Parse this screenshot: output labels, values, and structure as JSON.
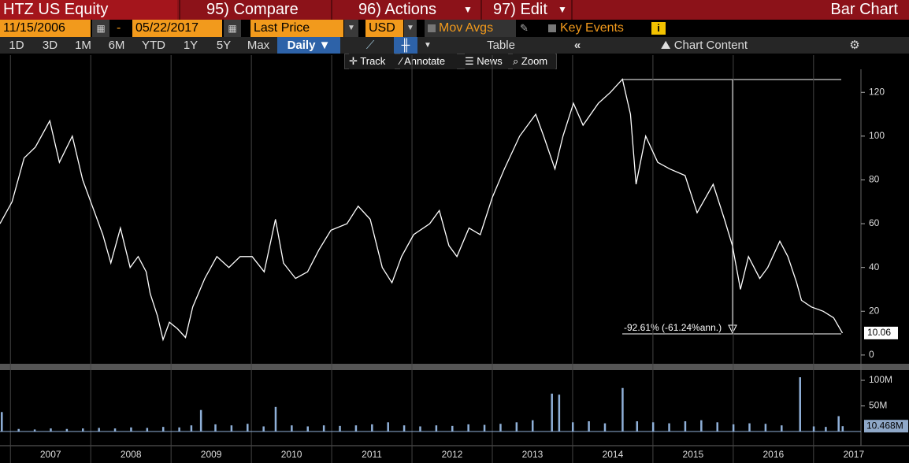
{
  "header": {
    "ticker": "HTZ US Equity",
    "menu": [
      "95) Compare",
      "96) Actions",
      "97) Edit"
    ],
    "view": "Bar Chart"
  },
  "controls": {
    "start_date": "11/15/2006",
    "separator": "-",
    "end_date": "05/22/2017",
    "field": "Last Price",
    "currency": "USD",
    "mov_avgs": "Mov Avgs",
    "key_events": "Key Events"
  },
  "periods": [
    "1D",
    "3D",
    "1M",
    "6M",
    "YTD",
    "1Y",
    "5Y",
    "Max"
  ],
  "frequency": "Daily",
  "table": "Table",
  "chart_content": "Chart Content",
  "tools": [
    "Track",
    "Annotate",
    "News",
    "Zoom"
  ],
  "chart_data": [
    {
      "type": "line",
      "color": "#ffffff",
      "annotation": "-92.61% (-61.24%ann.)",
      "x": [
        2006.87,
        2007.02,
        2007.17,
        2007.31,
        2007.49,
        2007.61,
        2007.77,
        2007.9,
        2008.0,
        2008.15,
        2008.25,
        2008.37,
        2008.49,
        2008.59,
        2008.69,
        2008.74,
        2008.83,
        2008.9,
        2008.98,
        2009.08,
        2009.18,
        2009.27,
        2009.42,
        2009.57,
        2009.72,
        2009.86,
        2010.01,
        2010.16,
        2010.3,
        2010.4,
        2010.55,
        2010.7,
        2010.84,
        2010.99,
        2011.19,
        2011.33,
        2011.48,
        2011.63,
        2011.75,
        2011.87,
        2012.02,
        2012.22,
        2012.34,
        2012.46,
        2012.56,
        2012.71,
        2012.85,
        2013.0,
        2013.15,
        2013.34,
        2013.54,
        2013.64,
        2013.78,
        2013.88,
        2014.01,
        2014.13,
        2014.32,
        2014.47,
        2014.62,
        2014.72,
        2014.79,
        2014.91,
        2015.06,
        2015.21,
        2015.4,
        2015.55,
        2015.75,
        2015.89,
        2015.99,
        2016.09,
        2016.19,
        2016.33,
        2016.43,
        2016.58,
        2016.68,
        2016.79,
        2016.85,
        2016.97,
        2017.12,
        2017.25,
        2017.36
      ],
      "values": [
        60,
        70,
        90,
        95,
        107,
        88,
        100,
        80,
        70,
        55,
        42,
        58,
        40,
        45,
        38,
        28,
        18,
        7,
        15,
        12,
        8,
        22,
        35,
        45,
        40,
        45,
        45,
        38,
        62,
        42,
        35,
        38,
        48,
        57,
        60,
        68,
        62,
        40,
        33,
        45,
        55,
        60,
        66,
        50,
        45,
        58,
        55,
        72,
        85,
        100,
        110,
        100,
        85,
        100,
        115,
        105,
        115,
        120,
        126,
        110,
        78,
        100,
        88,
        85,
        82,
        65,
        78,
        62,
        50,
        30,
        45,
        35,
        40,
        52,
        45,
        33,
        25,
        22,
        20,
        17,
        10.06
      ],
      "xlim": [
        2006.87,
        2017.6
      ],
      "xticks": [
        {
          "value": 2007,
          "label": "2007"
        },
        {
          "value": 2008,
          "label": "2008"
        },
        {
          "value": 2009,
          "label": "2009"
        },
        {
          "value": 2010,
          "label": "2010"
        },
        {
          "value": 2011,
          "label": "2011"
        },
        {
          "value": 2012,
          "label": "2012"
        },
        {
          "value": 2013,
          "label": "2013"
        },
        {
          "value": 2014,
          "label": "2014"
        },
        {
          "value": 2015,
          "label": "2015"
        },
        {
          "value": 2016,
          "label": "2016"
        },
        {
          "value": 2017,
          "label": "2017"
        }
      ],
      "ylim": [
        -4,
        137
      ],
      "yticks": [
        0,
        20,
        40,
        60,
        80,
        100,
        120
      ]
    },
    {
      "type": "bar",
      "color": "#8fb0d8",
      "x": [
        2006.89,
        2007.1,
        2007.3,
        2007.5,
        2007.7,
        2007.9,
        2008.1,
        2008.3,
        2008.5,
        2008.7,
        2008.9,
        2009.1,
        2009.25,
        2009.37,
        2009.55,
        2009.75,
        2009.95,
        2010.15,
        2010.3,
        2010.5,
        2010.7,
        2010.9,
        2011.1,
        2011.3,
        2011.5,
        2011.7,
        2011.9,
        2012.1,
        2012.3,
        2012.5,
        2012.7,
        2012.9,
        2013.1,
        2013.3,
        2013.5,
        2013.74,
        2013.83,
        2014.0,
        2014.2,
        2014.4,
        2014.62,
        2014.8,
        2015.0,
        2015.2,
        2015.4,
        2015.6,
        2015.8,
        2016.0,
        2016.2,
        2016.4,
        2016.6,
        2016.83,
        2017.0,
        2017.15,
        2017.31,
        2017.36
      ],
      "values": [
        38000000,
        5000000,
        4000000,
        6000000,
        5000000,
        6000000,
        7000000,
        6000000,
        8000000,
        7000000,
        9000000,
        8000000,
        12000000,
        42000000,
        14000000,
        12000000,
        15000000,
        10000000,
        48000000,
        12000000,
        10000000,
        12000000,
        11000000,
        12000000,
        14000000,
        18000000,
        12000000,
        10000000,
        12000000,
        11000000,
        14000000,
        13000000,
        15000000,
        18000000,
        22000000,
        74000000,
        72000000,
        18000000,
        20000000,
        16000000,
        85000000,
        20000000,
        18000000,
        16000000,
        20000000,
        22000000,
        18000000,
        14000000,
        16000000,
        15000000,
        12000000,
        106000000,
        10000000,
        9000000,
        30000000,
        10468000
      ],
      "value_labels": [
        null,
        null,
        null,
        null,
        null,
        null,
        null,
        null,
        null,
        null,
        null,
        null,
        null,
        null,
        null,
        null,
        null,
        null,
        null,
        null,
        null,
        null,
        null,
        null,
        null,
        null,
        null,
        null,
        null,
        null,
        null,
        null,
        null,
        null,
        null,
        null,
        null,
        null,
        null,
        null,
        null,
        null,
        null,
        null,
        null,
        null,
        null,
        null,
        null,
        null,
        null,
        null,
        null,
        null,
        null,
        "10.468M"
      ],
      "ylim": [
        0,
        120000000
      ],
      "yticks": [
        {
          "value": 50000000,
          "label": "50M"
        },
        {
          "value": 100000000,
          "label": "100M"
        }
      ]
    }
  ]
}
